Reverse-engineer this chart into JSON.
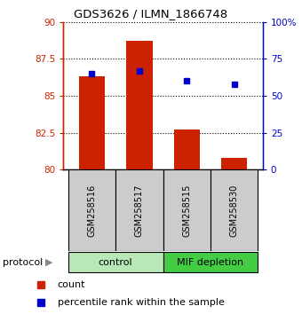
{
  "title": "GDS3626 / ILMN_1866748",
  "samples": [
    "GSM258516",
    "GSM258517",
    "GSM258515",
    "GSM258530"
  ],
  "bar_values": [
    86.3,
    88.7,
    82.7,
    80.8
  ],
  "percentile_values": [
    65,
    67,
    60,
    58
  ],
  "ylim_left": [
    80,
    90
  ],
  "ylim_right": [
    0,
    100
  ],
  "yticks_left": [
    80,
    82.5,
    85,
    87.5,
    90
  ],
  "ytick_labels_left": [
    "80",
    "82.5",
    "85",
    "87.5",
    "90"
  ],
  "yticks_right": [
    0,
    25,
    50,
    75,
    100
  ],
  "ytick_labels_right": [
    "0",
    "25",
    "50",
    "75",
    "100%"
  ],
  "bar_color": "#cc2200",
  "dot_color": "#0000cc",
  "control_label": "control",
  "mif_label": "MIF depletion",
  "protocol_label": "protocol",
  "legend_bar_label": "count",
  "legend_dot_label": "percentile rank within the sample",
  "control_color": "#b8e8b8",
  "mif_color": "#44cc44",
  "xlabel_bg": "#cccccc",
  "n_control": 2,
  "n_mif": 2
}
